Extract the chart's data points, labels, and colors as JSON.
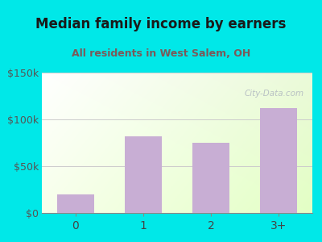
{
  "title": "Median family income by earners",
  "subtitle": "All residents in West Salem, OH",
  "categories": [
    "0",
    "1",
    "2",
    "3+"
  ],
  "values": [
    20000,
    82000,
    75000,
    112000
  ],
  "bar_color": "#c8aed4",
  "title_color": "#1a1a1a",
  "subtitle_color": "#7a5a5a",
  "outer_bg": "#00e8e8",
  "ylim": [
    0,
    150000
  ],
  "yticks": [
    0,
    50000,
    100000,
    150000
  ],
  "ytick_labels": [
    "$0",
    "$50k",
    "$100k",
    "$150k"
  ],
  "watermark": "City-Data.com",
  "watermark_color": "#b0b8c0"
}
